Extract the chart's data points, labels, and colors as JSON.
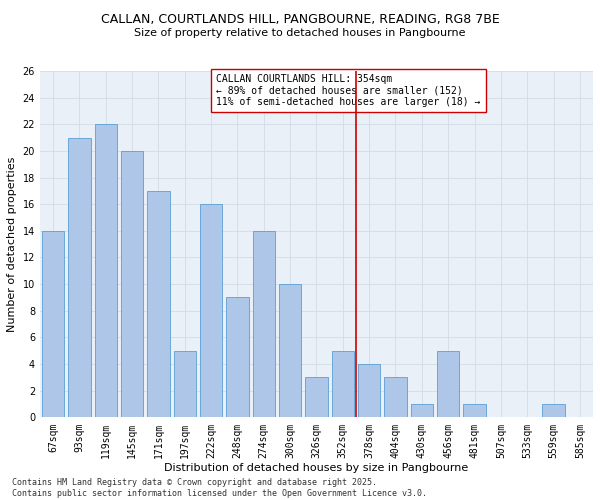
{
  "title1": "CALLAN, COURTLANDS HILL, PANGBOURNE, READING, RG8 7BE",
  "title2": "Size of property relative to detached houses in Pangbourne",
  "xlabel": "Distribution of detached houses by size in Pangbourne",
  "ylabel": "Number of detached properties",
  "categories": [
    "67sqm",
    "93sqm",
    "119sqm",
    "145sqm",
    "171sqm",
    "197sqm",
    "222sqm",
    "248sqm",
    "274sqm",
    "300sqm",
    "326sqm",
    "352sqm",
    "378sqm",
    "404sqm",
    "430sqm",
    "456sqm",
    "481sqm",
    "507sqm",
    "533sqm",
    "559sqm",
    "585sqm"
  ],
  "values": [
    14,
    21,
    22,
    20,
    17,
    5,
    16,
    9,
    14,
    10,
    3,
    5,
    4,
    3,
    1,
    5,
    1,
    0,
    0,
    1,
    0
  ],
  "bar_color": "#aec6e8",
  "bar_edgecolor": "#5a9fd4",
  "vline_x": 11.5,
  "vline_color": "#cc0000",
  "annotation_text": "CALLAN COURTLANDS HILL: 354sqm\n← 89% of detached houses are smaller (152)\n11% of semi-detached houses are larger (18) →",
  "annotation_box_edgecolor": "#cc0000",
  "ylim": [
    0,
    26
  ],
  "yticks": [
    0,
    2,
    4,
    6,
    8,
    10,
    12,
    14,
    16,
    18,
    20,
    22,
    24,
    26
  ],
  "grid_color": "#d0dce8",
  "bg_color": "#eaf0f8",
  "footnote": "Contains HM Land Registry data © Crown copyright and database right 2025.\nContains public sector information licensed under the Open Government Licence v3.0.",
  "title_fontsize": 9,
  "subtitle_fontsize": 8,
  "axis_label_fontsize": 8,
  "tick_fontsize": 7,
  "annotation_fontsize": 7,
  "footnote_fontsize": 6
}
